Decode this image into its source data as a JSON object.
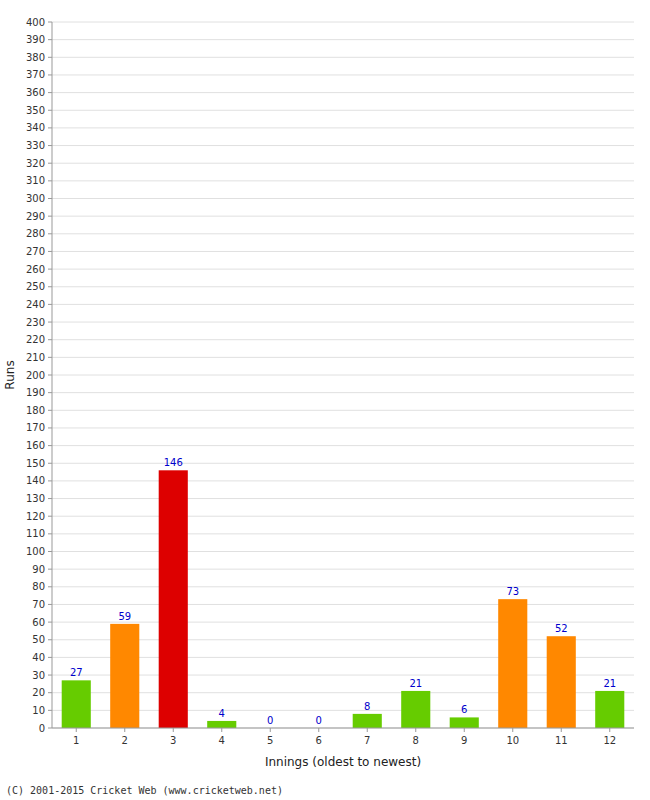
{
  "chart_data": {
    "type": "bar",
    "xlabel": "Innings (oldest to newest)",
    "ylabel": "Runs",
    "categories": [
      "1",
      "2",
      "3",
      "4",
      "5",
      "6",
      "7",
      "8",
      "9",
      "10",
      "11",
      "12"
    ],
    "values": [
      27,
      59,
      146,
      4,
      0,
      0,
      8,
      21,
      6,
      73,
      52,
      21
    ],
    "colors": [
      "#66cc00",
      "#ff8800",
      "#dd0000",
      "#66cc00",
      "#66cc00",
      "#66cc00",
      "#66cc00",
      "#66cc00",
      "#66cc00",
      "#ff8800",
      "#ff8800",
      "#66cc00"
    ],
    "ylim": [
      0,
      400
    ],
    "yticks": [
      0,
      10,
      20,
      30,
      40,
      50,
      60,
      70,
      80,
      90,
      100,
      110,
      120,
      130,
      140,
      150,
      160,
      170,
      180,
      190,
      200,
      210,
      220,
      230,
      240,
      250,
      260,
      270,
      280,
      290,
      300,
      310,
      320,
      330,
      340,
      350,
      360,
      370,
      380,
      390,
      400
    ],
    "grid": true,
    "data_labels": true,
    "annotations": [
      "(C) 2001-2015 Cricket Web (www.cricketweb.net)"
    ]
  }
}
